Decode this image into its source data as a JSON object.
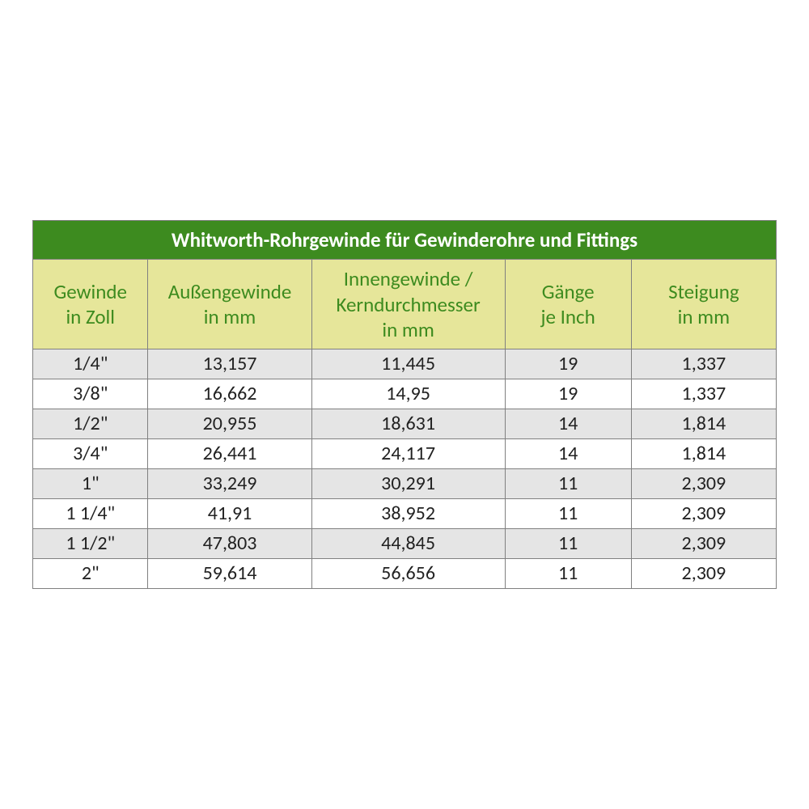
{
  "table": {
    "type": "table",
    "title": "Whitworth-Rohrgewinde für Gewinderohre und Fittings",
    "colors": {
      "title_bg": "#3d8b1f",
      "title_text": "#ffffff",
      "header_bg": "#e6e69a",
      "header_text": "#3d8b1f",
      "row_odd_bg": "#e5e5e5",
      "row_even_bg": "#ffffff",
      "border": "#808080",
      "cell_text": "#222222"
    },
    "font": {
      "family": "Calibri",
      "title_size_pt": 19,
      "header_size_pt": 19,
      "cell_size_pt": 18,
      "title_weight": "bold",
      "header_weight": "normal",
      "cell_weight": "normal"
    },
    "column_widths_pct": [
      15.5,
      22,
      26,
      17,
      19.5
    ],
    "columns": [
      {
        "line1": "Gewinde",
        "line2": "in Zoll"
      },
      {
        "line1": "Außengewinde",
        "line2": "in mm"
      },
      {
        "line1": "Innengewinde /",
        "line2": "Kerndurchmesser",
        "line3": "in mm"
      },
      {
        "line1": "Gänge",
        "line2": "je Inch"
      },
      {
        "line1": "Steigung",
        "line2": "in mm"
      }
    ],
    "rows": [
      [
        "1/4\"",
        "13,157",
        "11,445",
        "19",
        "1,337"
      ],
      [
        "3/8\"",
        "16,662",
        "14,95",
        "19",
        "1,337"
      ],
      [
        "1/2\"",
        "20,955",
        "18,631",
        "14",
        "1,814"
      ],
      [
        "3/4\"",
        "26,441",
        "24,117",
        "14",
        "1,814"
      ],
      [
        "1\"",
        "33,249",
        "30,291",
        "11",
        "2,309"
      ],
      [
        "1 1/4\"",
        "41,91",
        "38,952",
        "11",
        "2,309"
      ],
      [
        "1 1/2\"",
        "47,803",
        "44,845",
        "11",
        "2,309"
      ],
      [
        "2\"",
        "59,614",
        "56,656",
        "11",
        "2,309"
      ]
    ]
  }
}
